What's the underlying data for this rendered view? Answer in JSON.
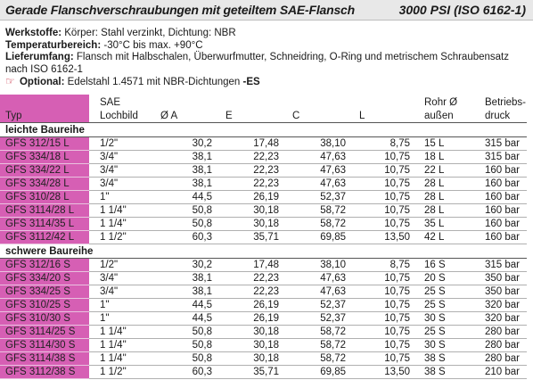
{
  "title": {
    "left": "Gerade Flanschverschraubungen mit geteiltem SAE-Flansch",
    "right": "3000 PSI (ISO 6162-1)"
  },
  "info": {
    "werkstoffe_label": "Werkstoffe:",
    "werkstoffe_text": "Körper: Stahl verzinkt, Dichtung: NBR",
    "temp_label": "Temperaturbereich:",
    "temp_text": "-30°C bis max. +90°C",
    "lieferumfang_label": "Lieferumfang:",
    "lieferumfang_text": "Flansch mit Halbschalen, Überwurfmutter, Schneidring, O-Ring und metrischem Schraubensatz nach ISO 6162-1",
    "optional_label": "Optional:",
    "optional_text": "Edelstahl 1.4571 mit NBR-Dichtungen",
    "optional_suffix": "-ES"
  },
  "headers": {
    "typ": "Typ",
    "sae_1": "SAE",
    "sae_2": "Lochbild",
    "a": "Ø A",
    "e": "E",
    "c": "C",
    "l": "L",
    "rohr_1": "Rohr Ø",
    "rohr_2": "außen",
    "betrieb_1": "Betriebs-",
    "betrieb_2": "druck"
  },
  "sections": [
    {
      "title": "leichte Baureihe",
      "rows": [
        {
          "typ": "GFS 312/15 L",
          "sae": "1/2\"",
          "a": "30,2",
          "e": "17,48",
          "c": "38,10",
          "l": "8,75",
          "rohr": "15 L",
          "druck": "315 bar"
        },
        {
          "typ": "GFS 334/18 L",
          "sae": "3/4\"",
          "a": "38,1",
          "e": "22,23",
          "c": "47,63",
          "l": "10,75",
          "rohr": "18 L",
          "druck": "315 bar"
        },
        {
          "typ": "GFS 334/22 L",
          "sae": "3/4\"",
          "a": "38,1",
          "e": "22,23",
          "c": "47,63",
          "l": "10,75",
          "rohr": "22 L",
          "druck": "160 bar"
        },
        {
          "typ": "GFS 334/28 L",
          "sae": "3/4\"",
          "a": "38,1",
          "e": "22,23",
          "c": "47,63",
          "l": "10,75",
          "rohr": "28 L",
          "druck": "160 bar"
        },
        {
          "typ": "GFS 310/28 L",
          "sae": "1\"",
          "a": "44,5",
          "e": "26,19",
          "c": "52,37",
          "l": "10,75",
          "rohr": "28 L",
          "druck": "160 bar"
        },
        {
          "typ": "GFS 3114/28 L",
          "sae": "1 1/4\"",
          "a": "50,8",
          "e": "30,18",
          "c": "58,72",
          "l": "10,75",
          "rohr": "28 L",
          "druck": "160 bar"
        },
        {
          "typ": "GFS 3114/35 L",
          "sae": "1 1/4\"",
          "a": "50,8",
          "e": "30,18",
          "c": "58,72",
          "l": "10,75",
          "rohr": "35 L",
          "druck": "160 bar"
        },
        {
          "typ": "GFS 3112/42 L",
          "sae": "1 1/2\"",
          "a": "60,3",
          "e": "35,71",
          "c": "69,85",
          "l": "13,50",
          "rohr": "42 L",
          "druck": "160 bar"
        }
      ]
    },
    {
      "title": "schwere Baureihe",
      "rows": [
        {
          "typ": "GFS 312/16 S",
          "sae": "1/2\"",
          "a": "30,2",
          "e": "17,48",
          "c": "38,10",
          "l": "8,75",
          "rohr": "16 S",
          "druck": "315 bar"
        },
        {
          "typ": "GFS 334/20 S",
          "sae": "3/4\"",
          "a": "38,1",
          "e": "22,23",
          "c": "47,63",
          "l": "10,75",
          "rohr": "20 S",
          "druck": "350 bar"
        },
        {
          "typ": "GFS 334/25 S",
          "sae": "3/4\"",
          "a": "38,1",
          "e": "22,23",
          "c": "47,63",
          "l": "10,75",
          "rohr": "25 S",
          "druck": "350 bar"
        },
        {
          "typ": "GFS 310/25 S",
          "sae": "1\"",
          "a": "44,5",
          "e": "26,19",
          "c": "52,37",
          "l": "10,75",
          "rohr": "25 S",
          "druck": "320 bar"
        },
        {
          "typ": "GFS 310/30 S",
          "sae": "1\"",
          "a": "44,5",
          "e": "26,19",
          "c": "52,37",
          "l": "10,75",
          "rohr": "30 S",
          "druck": "320 bar"
        },
        {
          "typ": "GFS 3114/25 S",
          "sae": "1 1/4\"",
          "a": "50,8",
          "e": "30,18",
          "c": "58,72",
          "l": "10,75",
          "rohr": "25 S",
          "druck": "280 bar"
        },
        {
          "typ": "GFS 3114/30 S",
          "sae": "1 1/4\"",
          "a": "50,8",
          "e": "30,18",
          "c": "58,72",
          "l": "10,75",
          "rohr": "30 S",
          "druck": "280 bar"
        },
        {
          "typ": "GFS 3114/38 S",
          "sae": "1 1/4\"",
          "a": "50,8",
          "e": "30,18",
          "c": "58,72",
          "l": "10,75",
          "rohr": "38 S",
          "druck": "280 bar"
        },
        {
          "typ": "GFS 3112/38 S",
          "sae": "1 1/2\"",
          "a": "60,3",
          "e": "35,71",
          "c": "69,85",
          "l": "13,50",
          "rohr": "38 S",
          "druck": "210 bar"
        }
      ]
    }
  ],
  "colors": {
    "typ_column": "#d65fb4",
    "hand_icon": "#c0142b",
    "title_bar": "#e8e8e8"
  }
}
